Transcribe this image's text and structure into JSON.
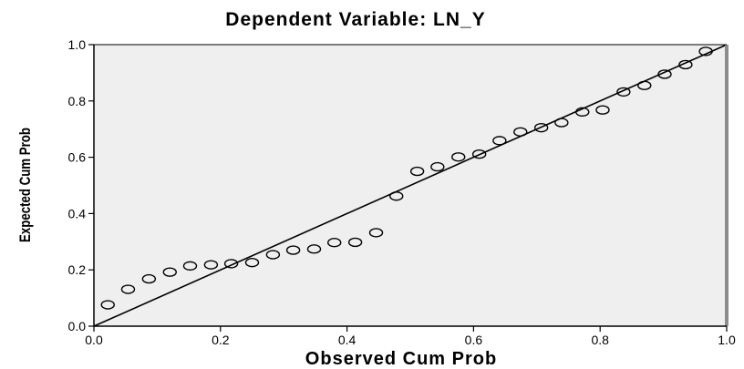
{
  "chart_data": {
    "type": "scatter",
    "title": "Dependent Variable: LN_Y",
    "xlabel": "Observed Cum Prob",
    "ylabel": "Expected Cum Prob",
    "xlim": [
      0.0,
      1.0
    ],
    "ylim": [
      0.0,
      1.0
    ],
    "x_ticks": [
      "0.0",
      "0.2",
      "0.4",
      "0.6",
      "0.8",
      "1.0"
    ],
    "y_ticks": [
      "0.0",
      "0.2",
      "0.4",
      "0.6",
      "0.8",
      "1.0"
    ],
    "reference_line": [
      [
        0.0,
        0.0
      ],
      [
        1.0,
        1.0
      ]
    ],
    "grid": false,
    "points": [
      {
        "x": 0.022,
        "y": 0.076
      },
      {
        "x": 0.054,
        "y": 0.131
      },
      {
        "x": 0.087,
        "y": 0.168
      },
      {
        "x": 0.12,
        "y": 0.192
      },
      {
        "x": 0.152,
        "y": 0.214
      },
      {
        "x": 0.185,
        "y": 0.218
      },
      {
        "x": 0.217,
        "y": 0.222
      },
      {
        "x": 0.25,
        "y": 0.226
      },
      {
        "x": 0.283,
        "y": 0.254
      },
      {
        "x": 0.315,
        "y": 0.27
      },
      {
        "x": 0.348,
        "y": 0.274
      },
      {
        "x": 0.38,
        "y": 0.297
      },
      {
        "x": 0.413,
        "y": 0.298
      },
      {
        "x": 0.446,
        "y": 0.332
      },
      {
        "x": 0.478,
        "y": 0.462
      },
      {
        "x": 0.511,
        "y": 0.55
      },
      {
        "x": 0.543,
        "y": 0.566
      },
      {
        "x": 0.576,
        "y": 0.601
      },
      {
        "x": 0.609,
        "y": 0.611
      },
      {
        "x": 0.641,
        "y": 0.659
      },
      {
        "x": 0.674,
        "y": 0.69
      },
      {
        "x": 0.707,
        "y": 0.705
      },
      {
        "x": 0.739,
        "y": 0.723
      },
      {
        "x": 0.772,
        "y": 0.761
      },
      {
        "x": 0.804,
        "y": 0.768
      },
      {
        "x": 0.837,
        "y": 0.832
      },
      {
        "x": 0.87,
        "y": 0.855
      },
      {
        "x": 0.902,
        "y": 0.895
      },
      {
        "x": 0.935,
        "y": 0.929
      },
      {
        "x": 0.967,
        "y": 0.976
      }
    ],
    "colors": {
      "plot_background": "#efefef",
      "marker_stroke": "#000000",
      "line": "#000000",
      "right_border": "#8c8c8c"
    }
  }
}
